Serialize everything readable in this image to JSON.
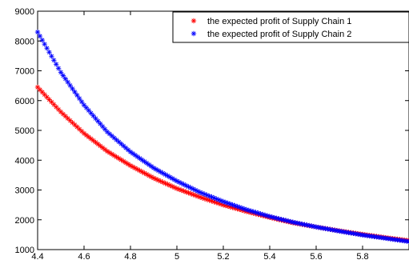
{
  "chart_data": {
    "type": "scatter",
    "title": "",
    "xlabel": "",
    "ylabel": "",
    "xlim": [
      4.4,
      6.0
    ],
    "ylim": [
      1000,
      9000
    ],
    "x_ticks": [
      4.4,
      4.6,
      4.8,
      5,
      5.2,
      5.4,
      5.6,
      5.8
    ],
    "x_tick_labels": [
      "4.4",
      "4.6",
      "4.8",
      "5",
      "5.2",
      "5.4",
      "5.6",
      "5.8"
    ],
    "y_ticks": [
      1000,
      2000,
      3000,
      4000,
      5000,
      6000,
      7000,
      8000,
      9000
    ],
    "y_tick_labels": [
      "1000",
      "2000",
      "3000",
      "4000",
      "5000",
      "6000",
      "7000",
      "8000",
      "9000"
    ],
    "grid": false,
    "legend_position": "top-right",
    "marker": "*",
    "series": [
      {
        "name": "the expected profit of Supply Chain 1",
        "color": "#ff0000",
        "x": [
          4.4,
          4.5,
          4.6,
          4.7,
          4.8,
          4.9,
          5.0,
          5.1,
          5.2,
          5.3,
          5.4,
          5.5,
          5.6,
          5.7,
          5.8,
          5.9,
          6.0
        ],
        "y": [
          6450,
          5620,
          4900,
          4300,
          3820,
          3400,
          3050,
          2760,
          2500,
          2280,
          2080,
          1900,
          1760,
          1630,
          1510,
          1400,
          1300
        ]
      },
      {
        "name": "the expected profit of Supply Chain 2",
        "color": "#0000ff",
        "x": [
          4.4,
          4.5,
          4.6,
          4.7,
          4.8,
          4.9,
          5.0,
          5.1,
          5.2,
          5.3,
          5.4,
          5.5,
          5.6,
          5.7,
          5.8,
          5.9,
          6.0
        ],
        "y": [
          8300,
          6950,
          5850,
          4950,
          4280,
          3740,
          3300,
          2920,
          2610,
          2340,
          2110,
          1920,
          1760,
          1620,
          1490,
          1380,
          1270
        ]
      }
    ]
  }
}
